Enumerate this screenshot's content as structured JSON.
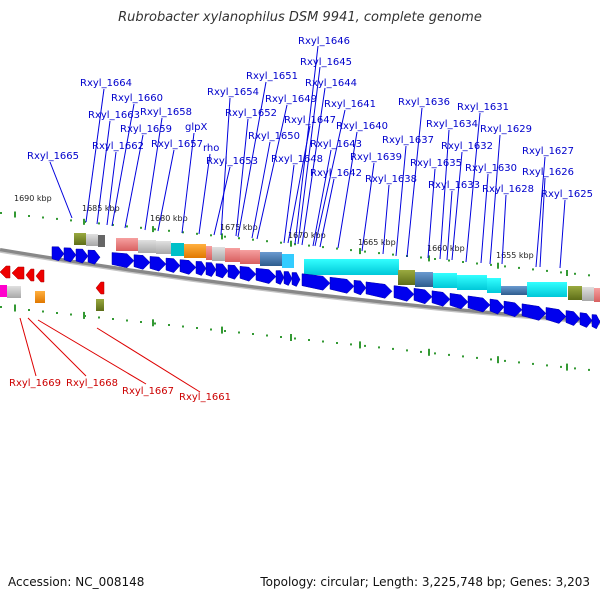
{
  "title": "Rubrobacter xylanophilus DSM 9941, complete genome",
  "footer": {
    "accession": "Accession: NC_008148",
    "summary": "Topology: circular; Length: 3,225,748 bp; Genes: 3,203"
  },
  "colors": {
    "forward_gene": "#0000ee",
    "reverse_gene": "#ee0000",
    "forward_label": "#0000cc",
    "reverse_label": "#cc0000",
    "tick": "#339933",
    "backbone": "#888888"
  },
  "kbp_ticks": [
    "1690 kbp",
    "1685 kbp",
    "1680 kbp",
    "1675 kbp",
    "1670 kbp",
    "1665 kbp",
    "1660 kbp",
    "1655 kbp"
  ],
  "forward_labels": [
    "Rxyl_1646",
    "Rxyl_1645",
    "Rxyl_1644",
    "Rxyl_1651",
    "Rxyl_1664",
    "Rxyl_1654",
    "Rxyl_1649",
    "Rxyl_1660",
    "Rxyl_1641",
    "Rxyl_1636",
    "Rxyl_1631",
    "Rxyl_1663",
    "Rxyl_1658",
    "Rxyl_1652",
    "Rxyl_1647",
    "Rxyl_1659",
    "glpX",
    "Rxyl_1640",
    "Rxyl_1634",
    "Rxyl_1629",
    "Rxyl_1650",
    "Rxyl_1662",
    "Rxyl_1657",
    "Rxyl_1643",
    "Rxyl_1637",
    "Rxyl_1632",
    "rho",
    "Rxyl_1627",
    "Rxyl_1665",
    "Rxyl_1653",
    "Rxyl_1648",
    "Rxyl_1639",
    "Rxyl_1635",
    "Rxyl_1630",
    "Rxyl_1626",
    "Rxyl_1642",
    "Rxyl_1638",
    "Rxyl_1633",
    "Rxyl_1628",
    "Rxyl_1625"
  ],
  "reverse_labels": [
    "Rxyl_1669",
    "Rxyl_1668",
    "Rxyl_1667",
    "Rxyl_1661"
  ]
}
